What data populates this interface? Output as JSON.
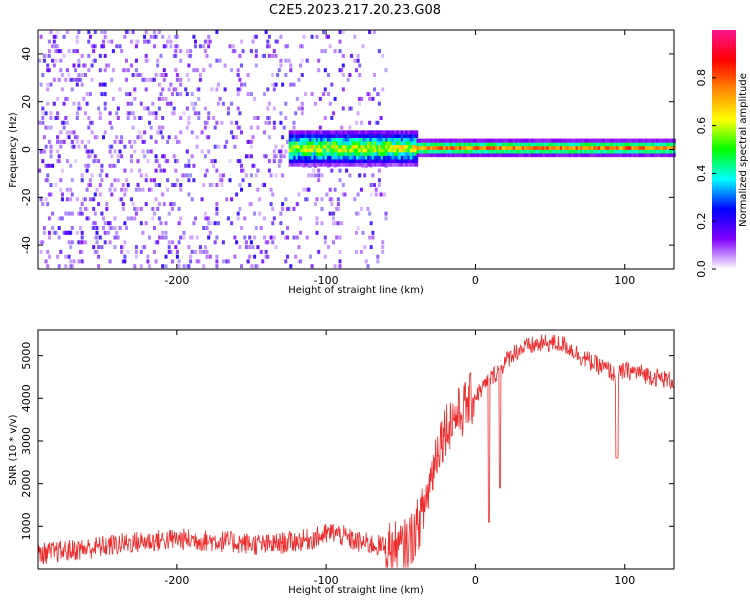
{
  "title": "C2E5.2023.217.20.23.G08",
  "chart_data": [
    {
      "type": "heatmap",
      "xlabel": "Height of straight line (km)",
      "ylabel": "Frequency (Hz)",
      "xlim": [
        -293,
        133
      ],
      "ylim": [
        -50,
        50
      ],
      "xticks": [
        -200,
        -100,
        0,
        100
      ],
      "yticks": [
        -40,
        -20,
        0,
        20,
        40
      ],
      "colorbar": {
        "label": "Normalized spectral amplitude",
        "range": [
          0,
          1
        ],
        "ticks": [
          "0.0",
          "0.2",
          "0.4",
          "0.6",
          "0.8"
        ],
        "colormap": [
          "#ffffff",
          "#7f00ff",
          "#0000ff",
          "#00ffff",
          "#00ff00",
          "#ffff00",
          "#ff8800",
          "#ff0000",
          "#ff1493"
        ]
      },
      "regions": [
        {
          "desc": "diffuse noise",
          "x": [
            -293,
            -60
          ],
          "freq_span": [
            -50,
            50
          ],
          "amplitude": 0.05
        },
        {
          "desc": "signal line",
          "x": [
            -125,
            133
          ],
          "freq_center": 0,
          "amplitude": 0.85
        }
      ]
    },
    {
      "type": "line",
      "xlabel": "Height of straight line (km)",
      "ylabel": "SNR (10 * v/v)",
      "xlim": [
        -293,
        133
      ],
      "ylim": [
        0,
        5600
      ],
      "xticks": [
        -200,
        -100,
        0,
        100
      ],
      "yticks": [
        1000,
        2000,
        3000,
        4000,
        5000
      ],
      "color": "#ee2b2b",
      "series": [
        {
          "x": [
            -293,
            -260,
            -230,
            -200,
            -170,
            -140,
            -110,
            -95,
            -80,
            -60,
            -50,
            -45,
            -40,
            -35,
            -30,
            -25,
            -20,
            -15,
            -10,
            -5,
            0,
            5,
            10,
            15,
            20,
            25,
            30,
            40,
            50,
            60,
            70,
            80,
            90,
            94,
            100,
            110,
            120,
            133
          ],
          "y": [
            350,
            480,
            620,
            700,
            650,
            560,
            700,
            860,
            640,
            520,
            460,
            600,
            900,
            1350,
            2100,
            2900,
            3300,
            3550,
            3650,
            3900,
            4050,
            4250,
            4450,
            4650,
            4850,
            5050,
            5150,
            5250,
            5300,
            5250,
            5000,
            4800,
            4650,
            4500,
            4650,
            4600,
            4500,
            4400
          ]
        }
      ]
    }
  ]
}
